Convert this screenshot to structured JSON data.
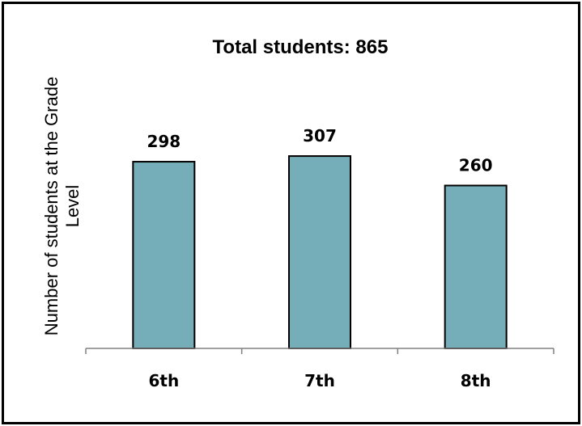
{
  "chart_data": {
    "type": "bar",
    "title": "Total students: 865",
    "ylabel_lines": [
      "Number of students at the Grade",
      "Level"
    ],
    "categories": [
      "6th",
      "7th",
      "8th"
    ],
    "values": [
      298,
      307,
      260
    ],
    "data_labels": [
      "298",
      "307",
      "260"
    ],
    "bar_color": "#75AEB8",
    "bar_stroke": "#000000",
    "axis_color": "#808080",
    "y_axis_visible": false,
    "gridlines": false,
    "legend": "none"
  }
}
